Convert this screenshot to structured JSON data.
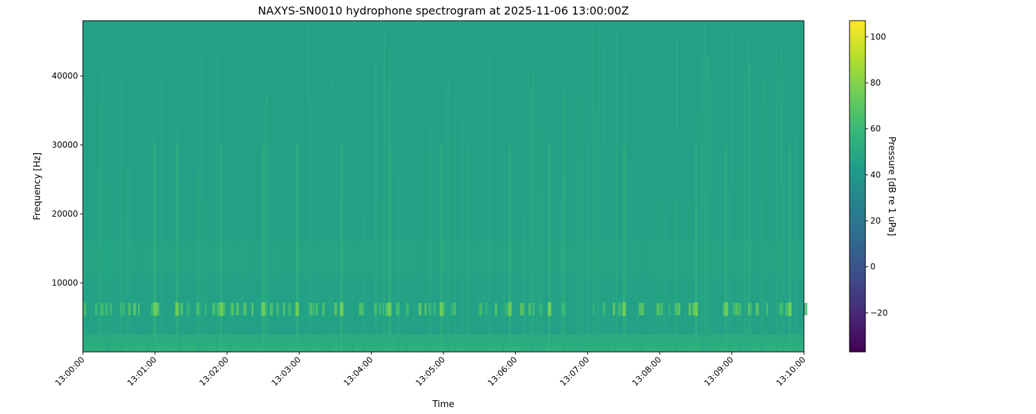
{
  "chart_data": {
    "type": "heatmap",
    "title": "NAXYS-SN0010 hydrophone spectrogram at 2025-11-06 13:00:00Z",
    "xlabel": "Time",
    "ylabel": "Frequency [Hz]",
    "x_ticks": [
      "13:00:00",
      "13:01:00",
      "13:02:00",
      "13:03:00",
      "13:04:00",
      "13:05:00",
      "13:06:00",
      "13:07:00",
      "13:08:00",
      "13:09:00",
      "13:10:00"
    ],
    "xlim": [
      "13:00:00",
      "13:10:00"
    ],
    "y_ticks": [
      10000,
      20000,
      30000,
      40000
    ],
    "ylim": [
      0,
      48000
    ],
    "colormap": "viridis",
    "colorbar": {
      "label": "Pressure [dB re 1 uPa]",
      "ticks": [
        -20,
        0,
        20,
        40,
        60,
        80,
        100
      ],
      "range": [
        -37,
        107
      ]
    },
    "background_level_db": 45,
    "low_frequency_level_db": 55,
    "tonal_band": {
      "frequency_hz": 6200,
      "peak_level_db": 75
    },
    "broadband_band": {
      "frequency_range_hz": [
        11000,
        16000
      ],
      "level_db": 52
    },
    "transient_times": [
      "13:01:00",
      "13:01:18",
      "13:01:55",
      "13:02:30",
      "13:02:58",
      "13:03:35",
      "13:04:15",
      "13:04:58",
      "13:05:55",
      "13:06:28",
      "13:07:30",
      "13:08:30",
      "13:08:55",
      "13:09:48"
    ]
  }
}
